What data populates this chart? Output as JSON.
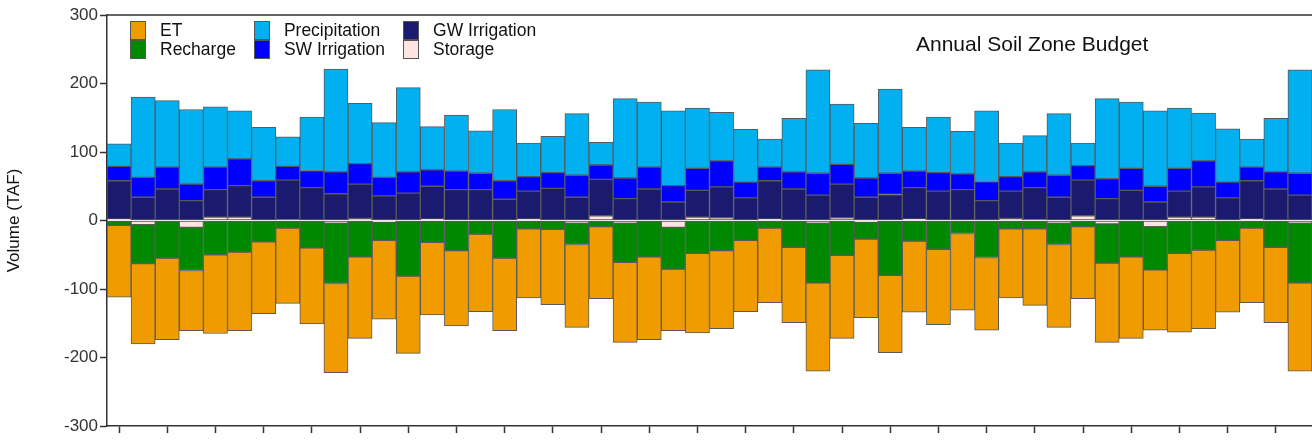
{
  "chart_data": {
    "type": "bar",
    "title": "Annual Soil Zone Budget",
    "ylabel": "Volume (TAF)",
    "stacked": true,
    "legend": "top left",
    "grid": false,
    "tick_labels": "y",
    "ylim": [
      -300,
      300
    ],
    "yticks": [
      -300,
      -200,
      -100,
      0,
      100,
      200,
      300
    ],
    "categories": [
      null,
      null,
      null,
      null,
      null,
      null,
      null,
      null,
      null,
      null,
      null,
      null,
      null,
      null,
      null,
      null,
      null,
      null,
      null,
      null,
      null,
      null,
      null,
      null,
      null,
      null,
      null,
      null,
      null,
      null,
      null,
      null,
      null,
      null,
      null,
      null,
      null,
      null,
      null,
      null,
      null,
      null,
      null,
      null,
      null,
      null,
      null,
      null,
      null,
      null
    ],
    "series": [
      {
        "name": "Storage",
        "color": "#ffe4e1",
        "values": [
          2,
          -6,
          0,
          -10,
          5,
          5,
          0,
          1,
          0,
          -4,
          3,
          -2,
          0,
          2,
          0,
          0,
          0,
          2,
          0,
          -4,
          7,
          -4,
          0,
          -10,
          5,
          4,
          0,
          2,
          0,
          -4,
          4,
          -2,
          0,
          2,
          0,
          0,
          0,
          3,
          1,
          -4,
          7,
          -5,
          0,
          -9,
          5,
          5,
          0,
          2,
          0,
          -4
        ]
      },
      {
        "name": "GW Irrigation",
        "color": "#1a1a6e",
        "values": [
          56,
          34,
          46,
          29,
          40,
          46,
          34,
          58,
          48,
          39,
          50,
          36,
          40,
          48,
          45,
          45,
          31,
          41,
          47,
          34,
          53,
          32,
          46,
          27,
          39,
          45,
          33,
          56,
          46,
          37,
          49,
          34,
          38,
          46,
          43,
          45,
          29,
          40,
          47,
          34,
          52,
          32,
          44,
          27,
          38,
          44,
          33,
          56,
          46,
          37
        ]
      },
      {
        "name": "SW Irrigation",
        "color": "#0000ff",
        "values": [
          21,
          29,
          32,
          24,
          33,
          39,
          24,
          20,
          25,
          32,
          30,
          27,
          31,
          24,
          27,
          24,
          27,
          21,
          23,
          32,
          21,
          30,
          32,
          24,
          32,
          38,
          23,
          20,
          25,
          32,
          29,
          28,
          31,
          24,
          27,
          23,
          28,
          21,
          23,
          32,
          21,
          29,
          32,
          23,
          33,
          38,
          23,
          20,
          25,
          32
        ]
      },
      {
        "name": "Precipitation",
        "color": "#00b0f0",
        "values": [
          33,
          117,
          97,
          109,
          88,
          70,
          78,
          43,
          78,
          150,
          88,
          80,
          123,
          63,
          82,
          62,
          104,
          49,
          53,
          90,
          33,
          116,
          95,
          109,
          88,
          71,
          77,
          41,
          78,
          151,
          88,
          80,
          123,
          64,
          81,
          62,
          103,
          49,
          53,
          90,
          33,
          117,
          97,
          110,
          88,
          70,
          78,
          41,
          78,
          151
        ]
      },
      {
        "name": "Recharge",
        "color": "#008800",
        "values": [
          -7,
          -57,
          -55,
          -63,
          -50,
          -46,
          -31,
          -11,
          -40,
          -88,
          -53,
          -27,
          -81,
          -32,
          -44,
          -20,
          -55,
          -12,
          -13,
          -31,
          -9,
          -57,
          -53,
          -61,
          -48,
          -44,
          -29,
          -11,
          -39,
          -87,
          -51,
          -25,
          -80,
          -30,
          -42,
          -19,
          -54,
          -12,
          -12,
          -31,
          -9,
          -57,
          -53,
          -63,
          -48,
          -43,
          -29,
          -11,
          -39,
          -87
        ]
      },
      {
        "name": "ET",
        "color": "#f09c00",
        "values": [
          -105,
          -117,
          -119,
          -88,
          -115,
          -115,
          -105,
          -110,
          -111,
          -130,
          -119,
          -115,
          -113,
          -106,
          -110,
          -113,
          -106,
          -101,
          -110,
          -121,
          -105,
          -117,
          -121,
          -90,
          -116,
          -114,
          -104,
          -109,
          -110,
          -129,
          -121,
          -115,
          -113,
          -104,
          -110,
          -112,
          -106,
          -101,
          -112,
          -121,
          -105,
          -116,
          -119,
          -88,
          -115,
          -115,
          -105,
          -109,
          -110,
          -129
        ]
      }
    ]
  }
}
